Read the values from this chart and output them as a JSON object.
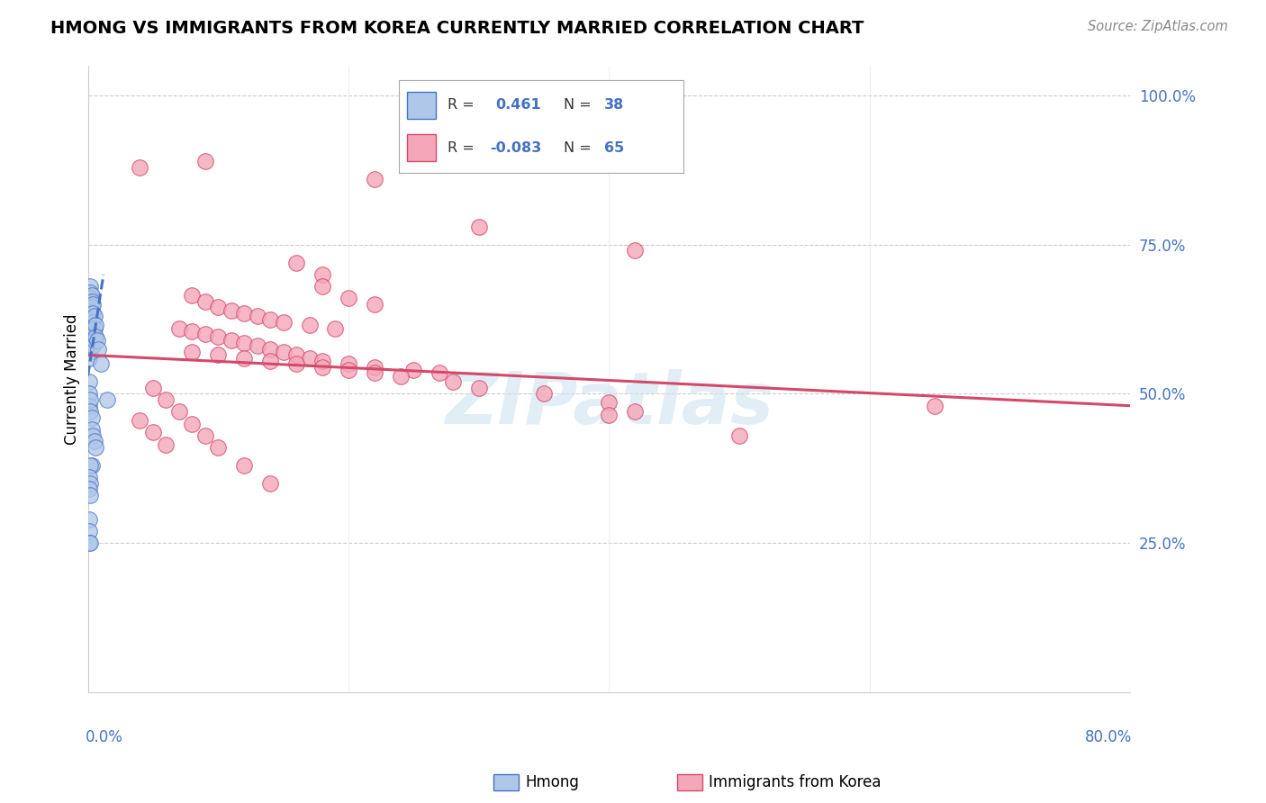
{
  "title": "HMONG VS IMMIGRANTS FROM KOREA CURRENTLY MARRIED CORRELATION CHART",
  "source": "Source: ZipAtlas.com",
  "ylabel": "Currently Married",
  "blue_color": "#aec6e8",
  "blue_line_color": "#4472c4",
  "pink_color": "#f4a7b9",
  "pink_line_color": "#d4496a",
  "blue_scatter_x": [
    0.001,
    0.001,
    0.001,
    0.001,
    0.001,
    0.001,
    0.001,
    0.001,
    0.002,
    0.002,
    0.002,
    0.002,
    0.002,
    0.002,
    0.002,
    0.002,
    0.002,
    0.003,
    0.003,
    0.003,
    0.003,
    0.003,
    0.003,
    0.003,
    0.004,
    0.004,
    0.004,
    0.004,
    0.004,
    0.005,
    0.005,
    0.005,
    0.006,
    0.006,
    0.007,
    0.008,
    0.01,
    0.015
  ],
  "blue_scatter_y": [
    0.63,
    0.62,
    0.61,
    0.6,
    0.59,
    0.58,
    0.57,
    0.56,
    0.68,
    0.67,
    0.66,
    0.65,
    0.64,
    0.625,
    0.61,
    0.595,
    0.58,
    0.665,
    0.655,
    0.645,
    0.635,
    0.62,
    0.6,
    0.585,
    0.65,
    0.635,
    0.62,
    0.6,
    0.58,
    0.63,
    0.61,
    0.59,
    0.615,
    0.595,
    0.59,
    0.575,
    0.55,
    0.49
  ],
  "blue_scatter_x2": [
    0.001,
    0.001,
    0.001,
    0.002,
    0.002,
    0.003,
    0.003,
    0.004,
    0.005,
    0.006,
    0.003,
    0.002,
    0.001,
    0.002,
    0.001,
    0.002,
    0.001,
    0.001,
    0.001,
    0.002
  ],
  "blue_scatter_y2": [
    0.52,
    0.5,
    0.48,
    0.49,
    0.47,
    0.46,
    0.44,
    0.43,
    0.42,
    0.41,
    0.38,
    0.38,
    0.36,
    0.35,
    0.34,
    0.33,
    0.29,
    0.27,
    0.25,
    0.25
  ],
  "pink_scatter_x": [
    0.04,
    0.09,
    0.22,
    0.3,
    0.42,
    0.16,
    0.18,
    0.18,
    0.2,
    0.22,
    0.08,
    0.09,
    0.1,
    0.11,
    0.12,
    0.13,
    0.14,
    0.15,
    0.17,
    0.19,
    0.07,
    0.08,
    0.09,
    0.1,
    0.11,
    0.12,
    0.13,
    0.14,
    0.15,
    0.16,
    0.17,
    0.18,
    0.2,
    0.22,
    0.25,
    0.27,
    0.08,
    0.1,
    0.12,
    0.14,
    0.16,
    0.18,
    0.2,
    0.22,
    0.24,
    0.28,
    0.3,
    0.35,
    0.4,
    0.42,
    0.05,
    0.06,
    0.07,
    0.08,
    0.09,
    0.1,
    0.12,
    0.14,
    0.4,
    0.5,
    0.65,
    0.04,
    0.05,
    0.06
  ],
  "pink_scatter_y": [
    0.88,
    0.89,
    0.86,
    0.78,
    0.74,
    0.72,
    0.7,
    0.68,
    0.66,
    0.65,
    0.665,
    0.655,
    0.645,
    0.64,
    0.635,
    0.63,
    0.625,
    0.62,
    0.615,
    0.61,
    0.61,
    0.605,
    0.6,
    0.595,
    0.59,
    0.585,
    0.58,
    0.575,
    0.57,
    0.565,
    0.56,
    0.555,
    0.55,
    0.545,
    0.54,
    0.535,
    0.57,
    0.565,
    0.56,
    0.555,
    0.55,
    0.545,
    0.54,
    0.535,
    0.53,
    0.52,
    0.51,
    0.5,
    0.485,
    0.47,
    0.51,
    0.49,
    0.47,
    0.45,
    0.43,
    0.41,
    0.38,
    0.35,
    0.465,
    0.43,
    0.48,
    0.455,
    0.435,
    0.415
  ],
  "pink_line_x": [
    0.0,
    0.8
  ],
  "pink_line_y": [
    0.565,
    0.48
  ],
  "blue_line_x": [
    0.0,
    0.012
  ],
  "blue_line_y": [
    0.53,
    0.7
  ],
  "watermark_text": "ZIPatlas",
  "xlim": [
    0.0,
    0.8
  ],
  "ylim": [
    0.0,
    1.05
  ],
  "right_ytick_vals": [
    0.25,
    0.5,
    0.75,
    1.0
  ],
  "right_ytick_labels": [
    "25.0%",
    "50.0%",
    "75.0%",
    "100.0%"
  ],
  "grid_yvals": [
    0.25,
    0.5,
    0.75,
    1.0
  ],
  "xtick_vals": [
    0.0,
    0.2,
    0.4,
    0.6,
    0.8
  ]
}
